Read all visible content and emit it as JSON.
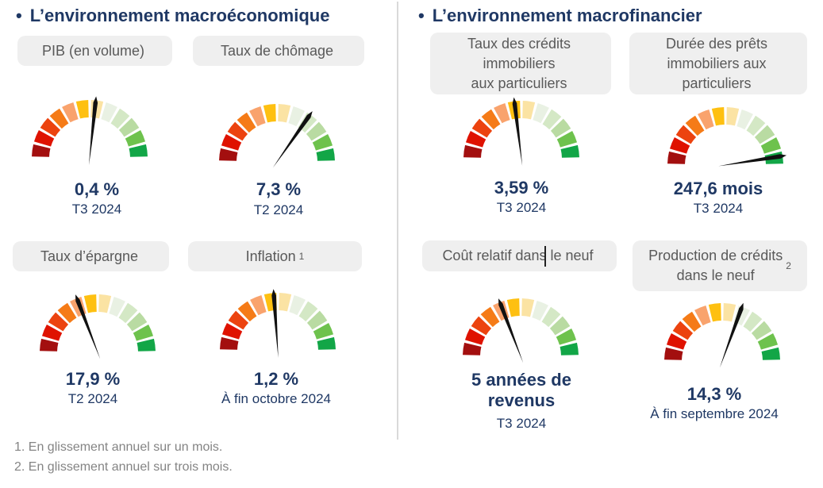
{
  "page": {
    "left_title_bullet": "•",
    "left_title": "L’environnement macroéconomique",
    "right_title_bullet": "•",
    "right_title": "L’environnement macrofinancier",
    "footnote_1": "1. En glissement annuel sur un mois.",
    "footnote_2": "2. En glissement annuel sur trois mois."
  },
  "colors": {
    "title_navy": "#1f3864",
    "value_navy": "#1f3864",
    "pill_background": "#efefef",
    "pill_text": "#595959",
    "footnote_gray": "#848484",
    "divider_gray": "#d9d9d9",
    "needle_black": "#111111"
  },
  "chart_data": {
    "type": "gauge",
    "orientation": "semicircle-180",
    "segments_per_gauge": 12,
    "segment_colors": [
      "#a30f0f",
      "#df1200",
      "#ec430f",
      "#f57b17",
      "#f9a36d",
      "#fec011",
      "#fbe3a3",
      "#e9f1e3",
      "#d4e8c5",
      "#b9dba2",
      "#6ec24d",
      "#12a647"
    ],
    "gauges": [
      {
        "id": "pib",
        "label": "PIB (en volume)",
        "sup": "",
        "value": "0,4 %",
        "period": "T3 2024",
        "needle_deg": 6
      },
      {
        "id": "taux-chomage",
        "label": "Taux de chômage",
        "sup": "",
        "value": "7,3 %",
        "period": "T2 2024",
        "needle_deg": 35
      },
      {
        "id": "taux-credits-immobiliers",
        "label": "Taux des crédits\nimmobiliers\naux particuliers",
        "sup": "",
        "value": "3,59 %",
        "period": "T3 2024",
        "needle_deg": -7
      },
      {
        "id": "duree-prets-immobiliers",
        "label": "Durée des prêts\nimmobiliers aux\nparticuliers",
        "sup": "",
        "value": "247,6 mois",
        "period": "T3 2024",
        "needle_deg": 81
      },
      {
        "id": "taux-epargne",
        "label": "Taux d’épargne",
        "sup": "",
        "value": "17,9 %",
        "period": "T2 2024",
        "needle_deg": -21
      },
      {
        "id": "inflation",
        "label": "Inflation",
        "sup": "1",
        "value": "1,2 %",
        "period": "À fin octobre 2024",
        "needle_deg": -4
      },
      {
        "id": "cout-relatif-neuf",
        "label": "Coût relatif dans le neuf",
        "sup": "",
        "value": "5 années de\nrevenus",
        "period": "T3 2024",
        "needle_deg": -21
      },
      {
        "id": "production-credits-neuf",
        "label": "Production de crédits\ndans le neuf",
        "sup": "2",
        "value": "14,3 %",
        "period": "À fin septembre 2024",
        "needle_deg": 20
      }
    ]
  }
}
